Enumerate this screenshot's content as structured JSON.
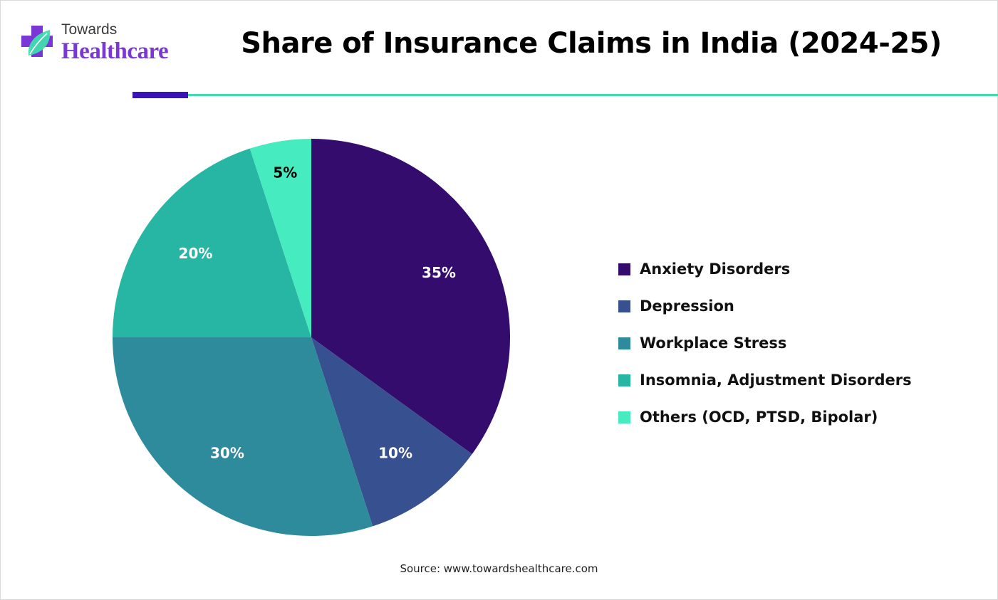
{
  "brand": {
    "top": "Towards",
    "bottom": "Healthcare",
    "colors": {
      "purple": "#7a37d6",
      "teal": "#40dcae",
      "deep": "#3a14b8"
    }
  },
  "title": "Share of Insurance Claims in India (2024-25)",
  "chart_data": {
    "type": "pie",
    "title": "Share of Insurance Claims in India (2024-25)",
    "legend_position": "right",
    "categories": [
      "Anxiety Disorders",
      "Depression",
      "Workplace Stress",
      "Insomnia, Adjustment Disorders",
      "Others (OCD, PTSD, Bipolar)"
    ],
    "values": [
      35,
      10,
      30,
      20,
      5
    ],
    "labels": [
      "35%",
      "10%",
      "30%",
      "20%",
      "5%"
    ],
    "colors": [
      "#330c6e",
      "#37508f",
      "#2e8b9b",
      "#27b5a4",
      "#46ecc0"
    ],
    "label_colors": [
      "#ffffff",
      "#ffffff",
      "#ffffff",
      "#ffffff",
      "#000000"
    ]
  },
  "source": "Source: www.towardshealthcare.com"
}
